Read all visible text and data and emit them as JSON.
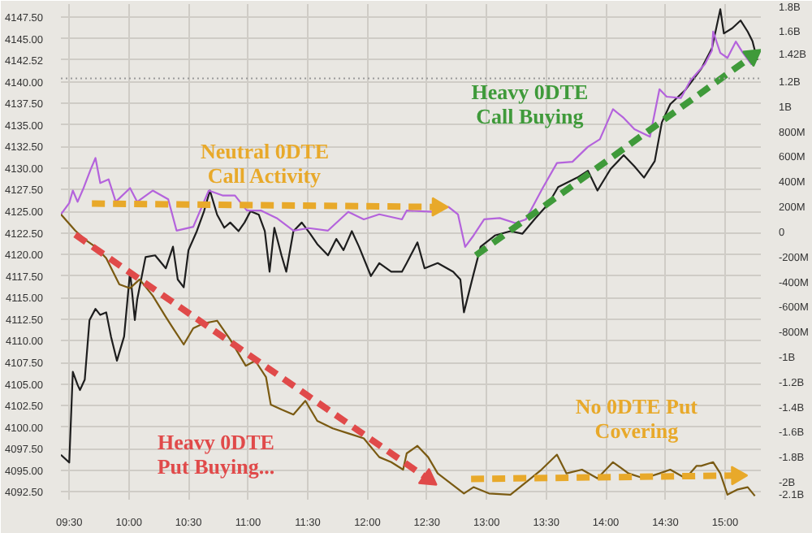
{
  "chart_data": {
    "type": "line",
    "xlim": [
      9.43,
      15.3
    ],
    "xticks": [
      {
        "value": 9.5,
        "label": "09:30"
      },
      {
        "value": 10,
        "label": "10:00"
      },
      {
        "value": 10.5,
        "label": "10:30"
      },
      {
        "value": 11,
        "label": "11:00"
      },
      {
        "value": 11.5,
        "label": "11:30"
      },
      {
        "value": 12,
        "label": "12:00"
      },
      {
        "value": 12.5,
        "label": "12:30"
      },
      {
        "value": 13,
        "label": "13:00"
      },
      {
        "value": 13.5,
        "label": "13:30"
      },
      {
        "value": 14,
        "label": "14:00"
      },
      {
        "value": 14.5,
        "label": "14:30"
      },
      {
        "value": 15,
        "label": "15:00"
      }
    ],
    "ylim": [
      4091.6,
      4149.0
    ],
    "yticks": [
      {
        "value": 4092.5,
        "label": "4092.50"
      },
      {
        "value": 4095,
        "label": "4095.00"
      },
      {
        "value": 4097.5,
        "label": "4097.50"
      },
      {
        "value": 4100,
        "label": "4100.00"
      },
      {
        "value": 4102.5,
        "label": "4102.50"
      },
      {
        "value": 4105,
        "label": "4105.00"
      },
      {
        "value": 4107.5,
        "label": "4107.50"
      },
      {
        "value": 4110,
        "label": "4110.00"
      },
      {
        "value": 4112.5,
        "label": "4112.50"
      },
      {
        "value": 4115,
        "label": "4115.00"
      },
      {
        "value": 4117.5,
        "label": "4117.50"
      },
      {
        "value": 4120,
        "label": "4120.00"
      },
      {
        "value": 4122.5,
        "label": "4122.50"
      },
      {
        "value": 4125,
        "label": "4125.00"
      },
      {
        "value": 4127.5,
        "label": "4127.50"
      },
      {
        "value": 4130,
        "label": "4130.00"
      },
      {
        "value": 4132.5,
        "label": "4132.50"
      },
      {
        "value": 4135,
        "label": "4135.00"
      },
      {
        "value": 4137.5,
        "label": "4137.50"
      },
      {
        "value": 4140,
        "label": "4140.00"
      },
      {
        "value": 4142.52,
        "label": "4142.52"
      },
      {
        "value": 4145,
        "label": "4145.00"
      },
      {
        "value": 4147.5,
        "label": "4147.50"
      }
    ],
    "y2lim": [
      -2130000000,
      1830000000
    ],
    "y2ticks": [
      {
        "value": 1800000000,
        "label": "1.8B"
      },
      {
        "value": 1600000000,
        "label": "1.6B"
      },
      {
        "value": 1420000000,
        "label": "1.42B"
      },
      {
        "value": 1200000000,
        "label": "1.2B"
      },
      {
        "value": 1000000000,
        "label": "1B"
      },
      {
        "value": 800000000,
        "label": "800M"
      },
      {
        "value": 600000000,
        "label": "600M"
      },
      {
        "value": 400000000,
        "label": "400M"
      },
      {
        "value": 200000000,
        "label": "200M"
      },
      {
        "value": 0,
        "label": "0"
      },
      {
        "value": -200000000,
        "label": "-200M"
      },
      {
        "value": -400000000,
        "label": "-400M"
      },
      {
        "value": -600000000,
        "label": "-600M"
      },
      {
        "value": -800000000,
        "label": "-800M"
      },
      {
        "value": -1000000000,
        "label": "-1B"
      },
      {
        "value": -1200000000,
        "label": "-1.2B"
      },
      {
        "value": -1400000000,
        "label": "-1.4B"
      },
      {
        "value": -1600000000,
        "label": "-1.6B"
      },
      {
        "value": -1800000000,
        "label": "-1.8B"
      },
      {
        "value": -2000000000,
        "label": "-2B"
      },
      {
        "value": -2100000000,
        "label": "-2.1B"
      }
    ],
    "grid": true,
    "series": [
      {
        "color": "#1e1e1e",
        "x": [
          9.43,
          9.5,
          9.53,
          9.57,
          9.59,
          9.63,
          9.67,
          9.72,
          9.76,
          9.81,
          9.85,
          9.9,
          9.96,
          10.01,
          10.05,
          10.07,
          10.14,
          10.22,
          10.31,
          10.37,
          10.41,
          10.46,
          10.5,
          10.57,
          10.63,
          10.68,
          10.74,
          10.8,
          10.85,
          10.92,
          10.97,
          11.02,
          11.09,
          11.14,
          11.18,
          11.22,
          11.28,
          11.32,
          11.38,
          11.45,
          11.52,
          11.58,
          11.67,
          11.74,
          11.8,
          11.87,
          11.93,
          12.03,
          12.1,
          12.2,
          12.29,
          12.33,
          12.42,
          12.48,
          12.59,
          12.72,
          12.78,
          12.81,
          12.89,
          12.95,
          13.07,
          13.2,
          13.3,
          13.41,
          13.52,
          13.6,
          13.76,
          13.85,
          13.93,
          14.04,
          14.15,
          14.24,
          14.32,
          14.41,
          14.47,
          14.54,
          14.67,
          14.8,
          14.89,
          14.96,
          14.99,
          15.06,
          15.13,
          15.19,
          15.23,
          15.27
        ],
        "values": [
          4096.8,
          4095.9,
          4106.4,
          4104.9,
          4104.3,
          4105.5,
          4112.4,
          4113.7,
          4113.0,
          4113.3,
          4110.5,
          4107.7,
          4110.5,
          4118.0,
          4112.4,
          4114.8,
          4119.7,
          4119.9,
          4118.4,
          4120.9,
          4117.1,
          4116.2,
          4120.5,
          4122.7,
          4125.0,
          4127.4,
          4124.6,
          4123.1,
          4123.7,
          4122.7,
          4123.7,
          4125.0,
          4124.6,
          4122.7,
          4118.0,
          4123.1,
          4119.9,
          4118.0,
          4122.7,
          4123.7,
          4122.4,
          4121.2,
          4119.9,
          4121.8,
          4120.5,
          4122.7,
          4120.9,
          4117.5,
          4119.0,
          4118.0,
          4118.0,
          4119.0,
          4121.4,
          4118.4,
          4119.0,
          4118.0,
          4117.1,
          4113.3,
          4117.7,
          4120.9,
          4122.2,
          4122.7,
          4122.4,
          4124.2,
          4125.9,
          4127.8,
          4128.9,
          4129.7,
          4127.4,
          4129.9,
          4131.5,
          4130.2,
          4128.9,
          4130.8,
          4135.3,
          4137.4,
          4139.1,
          4141.5,
          4143.9,
          4148.4,
          4145.6,
          4146.2,
          4147.1,
          4145.8,
          4144.7,
          4142.5
        ]
      },
      {
        "color": "#b463dc",
        "axis": "y2",
        "x": [
          9.43,
          9.5,
          9.53,
          9.57,
          9.62,
          9.68,
          9.72,
          9.76,
          9.83,
          9.89,
          10.01,
          10.07,
          10.2,
          10.33,
          10.4,
          10.54,
          10.67,
          10.79,
          10.89,
          10.99,
          11.11,
          11.24,
          11.38,
          11.51,
          11.67,
          11.84,
          11.97,
          12.1,
          12.29,
          12.33,
          12.55,
          12.68,
          12.76,
          12.82,
          12.89,
          12.98,
          13.11,
          13.24,
          13.33,
          13.47,
          13.59,
          13.72,
          13.85,
          13.95,
          14.06,
          14.15,
          14.24,
          14.37,
          14.45,
          14.51,
          14.63,
          14.71,
          14.83,
          14.89,
          14.9,
          14.96,
          15.02,
          15.09,
          15.15,
          15.22,
          15.25
        ],
        "values": [
          150000000,
          240000000,
          340000000,
          250000000,
          360000000,
          510000000,
          600000000,
          400000000,
          430000000,
          250000000,
          360000000,
          250000000,
          340000000,
          270000000,
          20000000,
          50000000,
          340000000,
          300000000,
          300000000,
          180000000,
          180000000,
          120000000,
          20000000,
          40000000,
          20000000,
          170000000,
          110000000,
          150000000,
          110000000,
          180000000,
          170000000,
          210000000,
          150000000,
          -110000000,
          -20000000,
          110000000,
          120000000,
          80000000,
          110000000,
          360000000,
          560000000,
          570000000,
          690000000,
          750000000,
          990000000,
          920000000,
          830000000,
          770000000,
          1150000000,
          1090000000,
          1080000000,
          1220000000,
          1350000000,
          1460000000,
          1610000000,
          1440000000,
          1400000000,
          1530000000,
          1440000000,
          1350000000,
          1420000000
        ]
      },
      {
        "color": "#7a5a12",
        "axis": "y2",
        "x": [
          9.43,
          9.55,
          9.63,
          9.72,
          9.81,
          9.92,
          10.01,
          10.09,
          10.2,
          10.31,
          10.37,
          10.46,
          10.54,
          10.63,
          10.74,
          10.85,
          10.98,
          11.06,
          11.15,
          11.19,
          11.28,
          11.38,
          11.48,
          11.58,
          11.71,
          11.84,
          11.97,
          12.1,
          12.2,
          12.3,
          12.33,
          12.42,
          12.51,
          12.59,
          12.81,
          12.89,
          13.02,
          13.2,
          13.37,
          13.46,
          13.59,
          13.67,
          13.8,
          13.93,
          14.06,
          14.19,
          14.32,
          14.45,
          14.54,
          14.67,
          14.76,
          14.8,
          14.9,
          14.96,
          15.02,
          15.1,
          15.19,
          15.25
        ],
        "values": [
          150000000,
          20000000,
          -50000000,
          -110000000,
          -200000000,
          -410000000,
          -440000000,
          -370000000,
          -500000000,
          -670000000,
          -760000000,
          -890000000,
          -760000000,
          -720000000,
          -700000000,
          -850000000,
          -1060000000,
          -1020000000,
          -1150000000,
          -1370000000,
          -1410000000,
          -1450000000,
          -1340000000,
          -1500000000,
          -1560000000,
          -1600000000,
          -1640000000,
          -1790000000,
          -1830000000,
          -1890000000,
          -1760000000,
          -1700000000,
          -1790000000,
          -1920000000,
          -2080000000,
          -2030000000,
          -2080000000,
          -2090000000,
          -1960000000,
          -1890000000,
          -1770000000,
          -1920000000,
          -1890000000,
          -1960000000,
          -1830000000,
          -1920000000,
          -1960000000,
          -1920000000,
          -1890000000,
          -1960000000,
          -1860000000,
          -1860000000,
          -1830000000,
          -1920000000,
          -2090000000,
          -2050000000,
          -2030000000,
          -2100000000
        ]
      },
      {
        "color": "#e8a92a",
        "line_style": "dashed",
        "x": [
          9.69,
          12.59
        ],
        "values": [
          4125.9,
          4125.5
        ]
      },
      {
        "color": "#e04a4a",
        "line_style": "dashed",
        "x": [
          9.55,
          12.51
        ],
        "values": [
          4122.3,
          4094.0
        ]
      },
      {
        "color": "#e8a92a",
        "line_style": "dashed",
        "x": [
          12.87,
          15.1
        ],
        "values": [
          4094.0,
          4094.4
        ]
      },
      {
        "color": "#3f9a3a",
        "line_style": "dashed",
        "x": [
          12.91,
          15.23
        ],
        "values": [
          4119.9,
          4143.0
        ]
      }
    ],
    "ref_lines": [
      {
        "axis": "y",
        "value": 4140.4,
        "color": "#9a9a9a",
        "line_style": "dotted"
      }
    ],
    "annotations": [
      "Neutral 0DTE\nCall Activity",
      "Heavy 0DTE\nPut Buying...",
      "No 0DTE Put\nCovering",
      "Heavy 0DTE\nCall Buying"
    ]
  }
}
